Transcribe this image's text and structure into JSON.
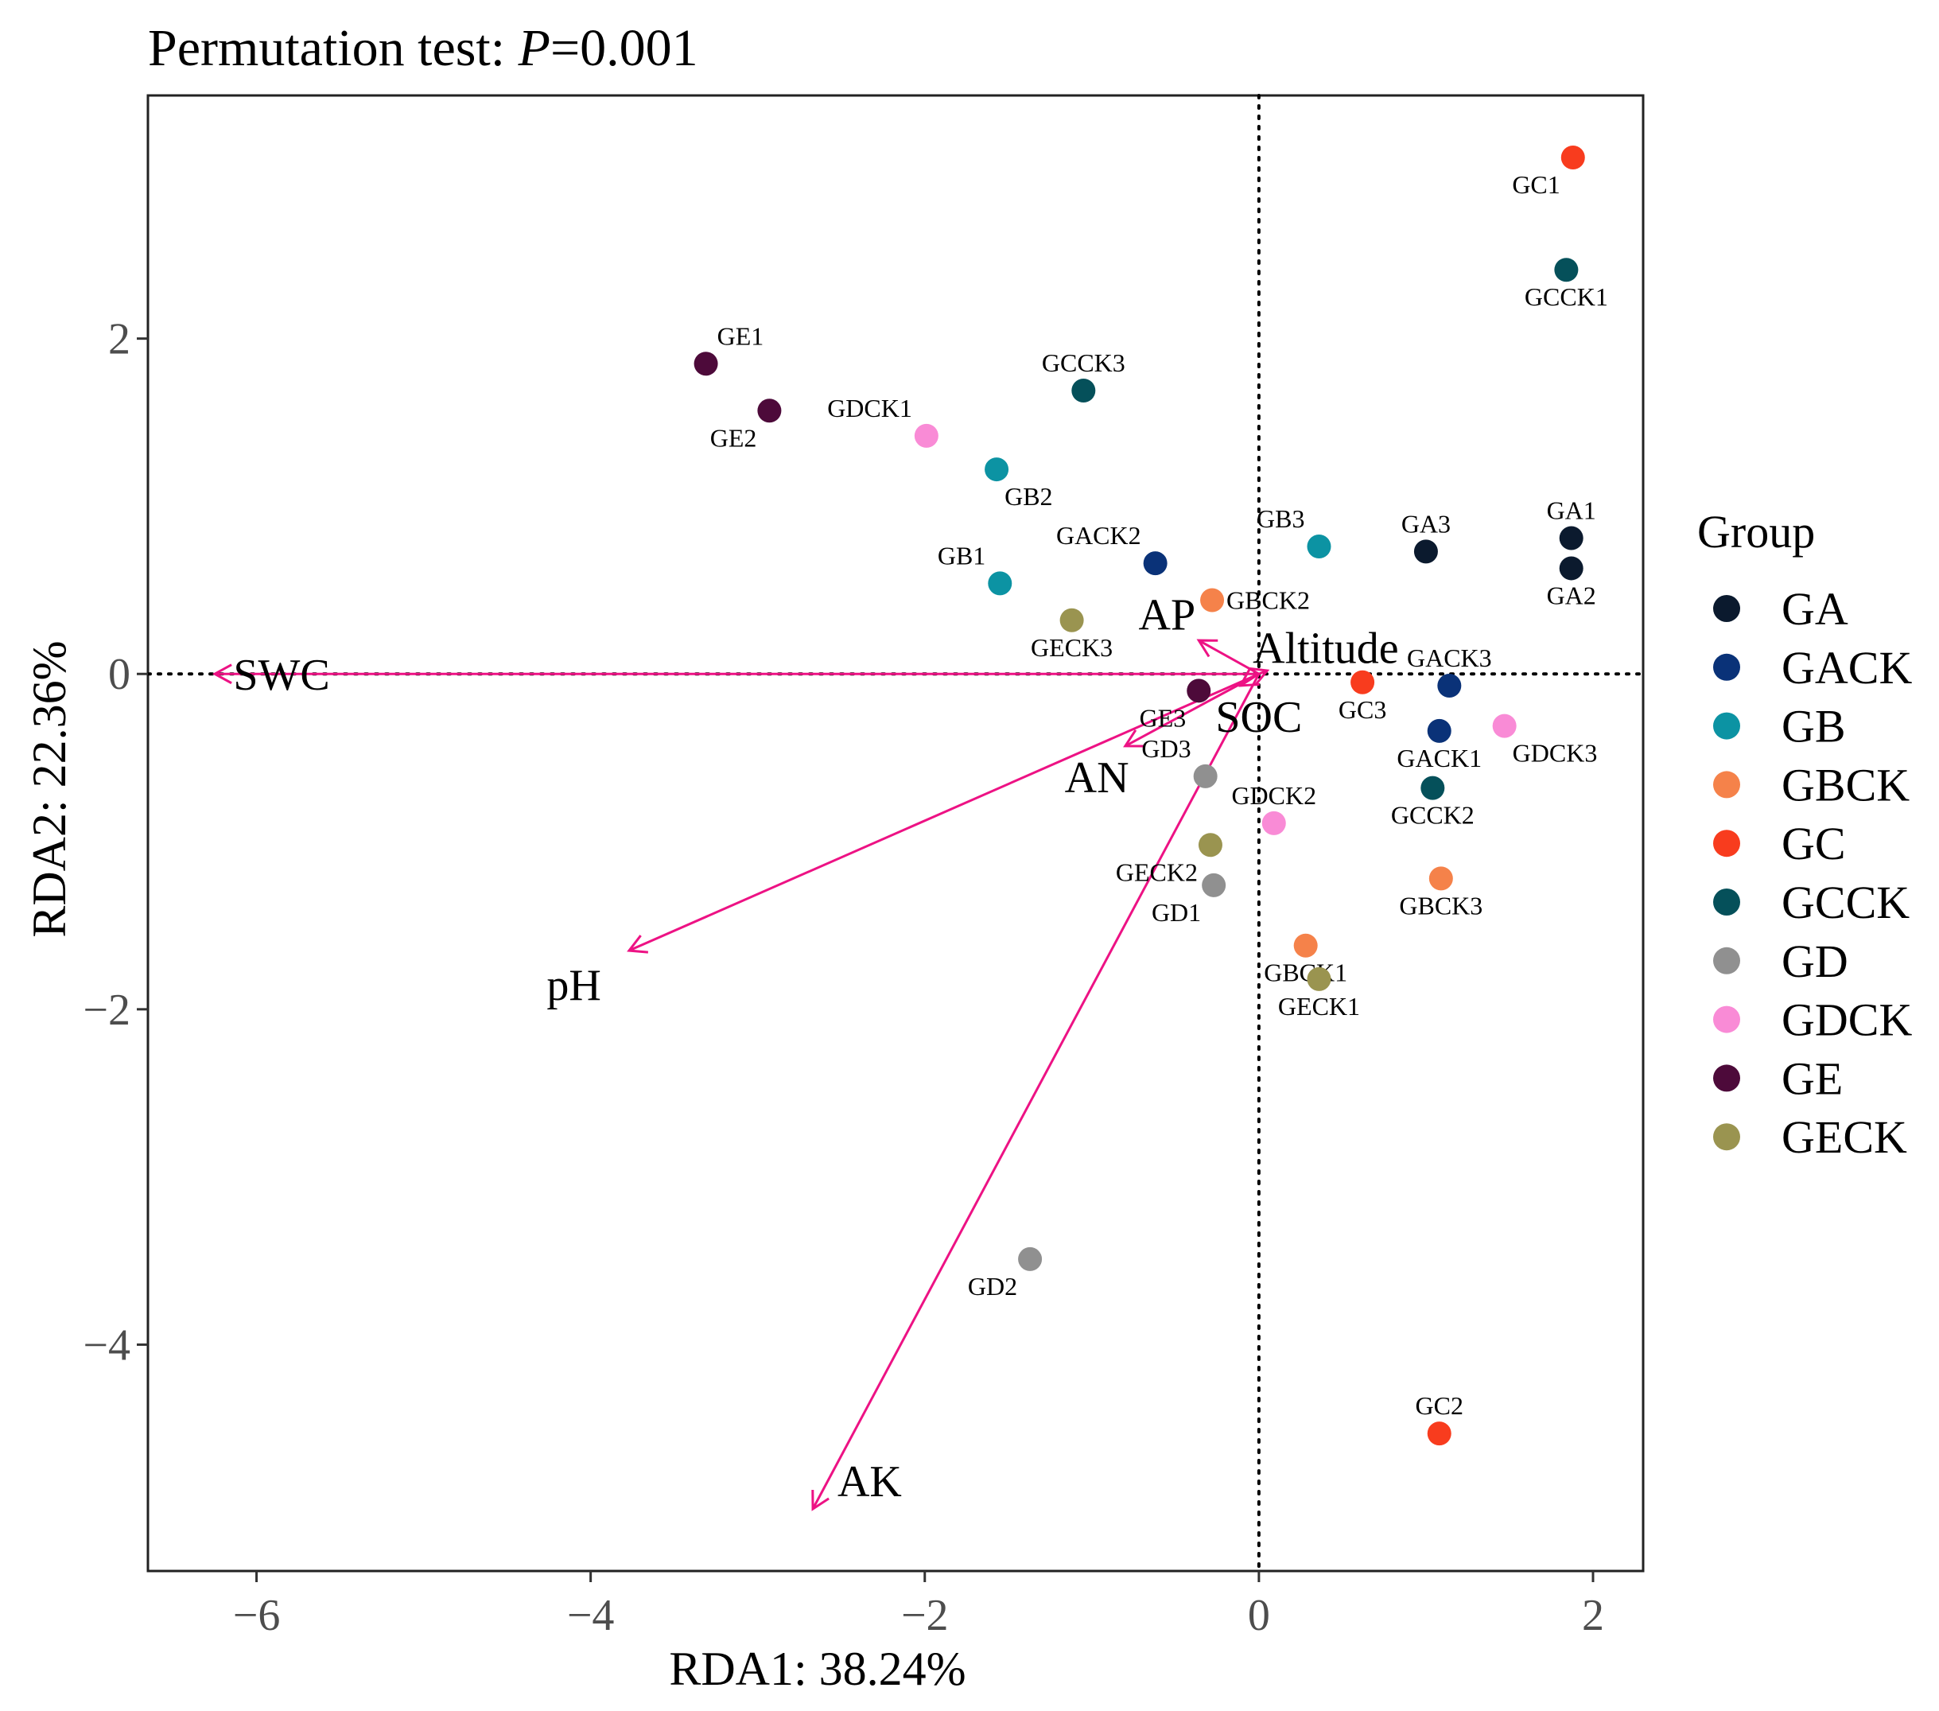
{
  "title": {
    "prefix": "Permutation test: ",
    "italic": "P",
    "suffix": "=0.001"
  },
  "chart_data": {
    "type": "scatter",
    "subtype": "RDA biplot",
    "xlabel": "RDA1: 38.24%",
    "ylabel": "RDA2: 22.36%",
    "xlim": [
      -6.65,
      2.3
    ],
    "ylim": [
      -5.35,
      3.45
    ],
    "xticks": [
      -6,
      -4,
      -2,
      0,
      2
    ],
    "xtick_labels": [
      "−6",
      "−4",
      "−2",
      "0",
      "2"
    ],
    "yticks": [
      -4,
      -2,
      0,
      2
    ],
    "ytick_labels": [
      "−4",
      "−2",
      "0",
      "2"
    ],
    "reference_lines": {
      "x": 0,
      "y": 0,
      "style": "dotted"
    },
    "legend": {
      "title": "Group",
      "placement": "right"
    },
    "groups": [
      {
        "name": "GA",
        "color": "#0b1a2e"
      },
      {
        "name": "GACK",
        "color": "#0a3278"
      },
      {
        "name": "GB",
        "color": "#0c93a3"
      },
      {
        "name": "GBCK",
        "color": "#f5824a"
      },
      {
        "name": "GC",
        "color": "#f83c1e"
      },
      {
        "name": "GCCK",
        "color": "#05505a"
      },
      {
        "name": "GD",
        "color": "#909090"
      },
      {
        "name": "GDCK",
        "color": "#f98bd6"
      },
      {
        "name": "GE",
        "color": "#4d0a3a"
      },
      {
        "name": "GECK",
        "color": "#9a9450"
      }
    ],
    "points": [
      {
        "label": "GA1",
        "group": "GA",
        "x": 1.87,
        "y": 0.81,
        "lpos": "above"
      },
      {
        "label": "GA2",
        "group": "GA",
        "x": 1.87,
        "y": 0.63,
        "lpos": "below"
      },
      {
        "label": "GA3",
        "group": "GA",
        "x": 1.0,
        "y": 0.73,
        "lpos": "above"
      },
      {
        "label": "GACK1",
        "group": "GACK",
        "x": 1.08,
        "y": -0.34,
        "lpos": "below"
      },
      {
        "label": "GACK2",
        "group": "GACK",
        "x": -0.62,
        "y": 0.66,
        "lpos": "aboveleft"
      },
      {
        "label": "GACK3",
        "group": "GACK",
        "x": 1.14,
        "y": -0.07,
        "lpos": "above"
      },
      {
        "label": "GB1",
        "group": "GB",
        "x": -1.55,
        "y": 0.54,
        "lpos": "aboveleft"
      },
      {
        "label": "GB2",
        "group": "GB",
        "x": -1.57,
        "y": 1.22,
        "lpos": "belowright"
      },
      {
        "label": "GB3",
        "group": "GB",
        "x": 0.36,
        "y": 0.76,
        "lpos": "aboveleft"
      },
      {
        "label": "GBCK1",
        "group": "GBCK",
        "x": 0.28,
        "y": -1.62,
        "lpos": "below"
      },
      {
        "label": "GBCK2",
        "group": "GBCK",
        "x": -0.28,
        "y": 0.44,
        "lpos": "right"
      },
      {
        "label": "GBCK3",
        "group": "GBCK",
        "x": 1.09,
        "y": -1.22,
        "lpos": "below"
      },
      {
        "label": "GC1",
        "group": "GC",
        "x": 1.88,
        "y": 3.08,
        "lpos": "belowleft"
      },
      {
        "label": "GC2",
        "group": "GC",
        "x": 1.08,
        "y": -4.53,
        "lpos": "above"
      },
      {
        "label": "GC3",
        "group": "GC",
        "x": 0.62,
        "y": -0.05,
        "lpos": "below"
      },
      {
        "label": "GCCK1",
        "group": "GCCK",
        "x": 1.84,
        "y": 2.41,
        "lpos": "below"
      },
      {
        "label": "GCCK2",
        "group": "GCCK",
        "x": 1.04,
        "y": -0.68,
        "lpos": "below"
      },
      {
        "label": "GCCK3",
        "group": "GCCK",
        "x": -1.05,
        "y": 1.69,
        "lpos": "above"
      },
      {
        "label": "GD1",
        "group": "GD",
        "x": -0.27,
        "y": -1.26,
        "lpos": "belowleft"
      },
      {
        "label": "GD2",
        "group": "GD",
        "x": -1.37,
        "y": -3.49,
        "lpos": "belowleft"
      },
      {
        "label": "GD3",
        "group": "GD",
        "x": -0.32,
        "y": -0.61,
        "lpos": "aboveleft"
      },
      {
        "label": "GDCK1",
        "group": "GDCK",
        "x": -1.99,
        "y": 1.42,
        "lpos": "aboveleft"
      },
      {
        "label": "GDCK2",
        "group": "GDCK",
        "x": 0.09,
        "y": -0.89,
        "lpos": "above"
      },
      {
        "label": "GDCK3",
        "group": "GDCK",
        "x": 1.47,
        "y": -0.31,
        "lpos": "belowright"
      },
      {
        "label": "GE1",
        "group": "GE",
        "x": -3.31,
        "y": 1.85,
        "lpos": "aboveright"
      },
      {
        "label": "GE2",
        "group": "GE",
        "x": -2.93,
        "y": 1.57,
        "lpos": "belowleft"
      },
      {
        "label": "GE3",
        "group": "GE",
        "x": -0.36,
        "y": -0.1,
        "lpos": "belowleft"
      },
      {
        "label": "GECK1",
        "group": "GECK",
        "x": 0.36,
        "y": -1.82,
        "lpos": "below"
      },
      {
        "label": "GECK2",
        "group": "GECK",
        "x": -0.29,
        "y": -1.02,
        "lpos": "belowleft"
      },
      {
        "label": "GECK3",
        "group": "GECK",
        "x": -1.12,
        "y": 0.32,
        "lpos": "below"
      }
    ],
    "vectors": [
      {
        "name": "SWC",
        "x": -6.25,
        "y": 0.0,
        "lx": -5.85,
        "ly": 0.0
      },
      {
        "name": "pH",
        "x": -3.77,
        "y": -1.65,
        "lx": -4.1,
        "ly": -1.85
      },
      {
        "name": "AK",
        "x": -2.67,
        "y": -4.98,
        "lx": -2.33,
        "ly": -4.81
      },
      {
        "name": "AN",
        "x": -0.8,
        "y": -0.43,
        "lx": -0.97,
        "ly": -0.61
      },
      {
        "name": "AP",
        "x": -0.36,
        "y": 0.2,
        "lx": -0.55,
        "ly": 0.36
      },
      {
        "name": "SOC",
        "x": -0.11,
        "y": -0.07,
        "lx": 0.0,
        "ly": -0.25
      },
      {
        "name": "Altitude",
        "x": 0.05,
        "y": 0.02,
        "lx": 0.4,
        "ly": 0.16
      }
    ],
    "vector_color": "#ed1284"
  }
}
